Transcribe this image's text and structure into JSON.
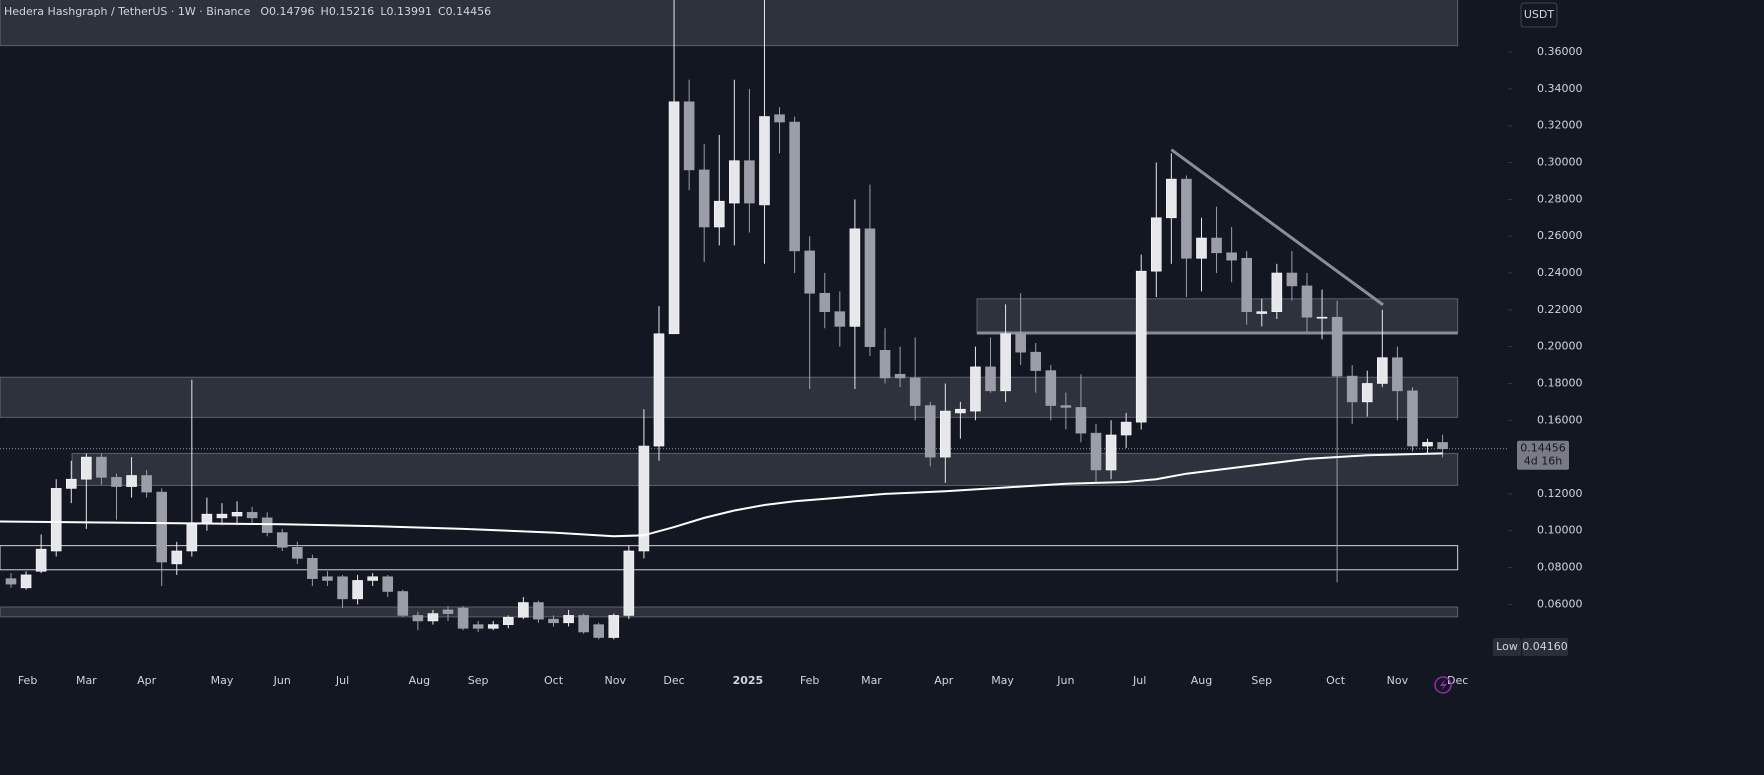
{
  "chart_data": {
    "type": "candlestick",
    "title": "Hedera Hashgraph / TetherUS · 1W · Binance",
    "ohlc_prefix": [
      "O",
      "H",
      "L",
      "C"
    ],
    "currency": "USDT",
    "countdown": "4d 16h",
    "low_label": "Low",
    "low_value": {
      "value": 0.0416,
      "label": "0.04160"
    },
    "up_color": "#e6e7ea",
    "down_color": "#9b9ea6",
    "open": [
      0.074,
      0.069,
      0.078,
      0.089,
      0.123,
      0.128,
      0.14,
      0.129,
      0.124,
      0.13,
      0.121,
      0.082,
      0.089,
      0.104,
      0.107,
      0.108,
      0.11,
      0.107,
      0.099,
      0.091,
      0.085,
      0.075,
      0.075,
      0.063,
      0.073,
      0.075,
      0.067,
      0.054,
      0.051,
      0.057,
      0.058,
      0.049,
      0.047,
      0.049,
      0.053,
      0.061,
      0.052,
      0.05,
      0.054,
      0.049,
      0.042,
      0.054,
      0.089,
      0.146,
      0.207,
      0.333,
      0.296,
      0.265,
      0.278,
      0.301,
      0.277,
      0.326,
      0.322,
      0.252,
      0.229,
      0.219,
      0.211,
      0.264,
      0.198,
      0.185,
      0.183,
      0.168,
      0.14,
      0.164,
      0.165,
      0.189,
      0.176,
      0.207,
      0.197,
      0.187,
      0.168,
      0.167,
      0.153,
      0.133,
      0.152,
      0.159,
      0.241,
      0.27,
      0.291,
      0.248,
      0.259,
      0.251,
      0.248,
      0.218,
      0.219,
      0.24,
      0.233,
      0.216,
      0.216,
      0.184,
      0.17,
      0.18,
      0.194,
      0.176,
      0.146,
      0.14796
    ],
    "high": [
      0.077,
      0.078,
      0.098,
      0.128,
      0.138,
      0.142,
      0.142,
      0.131,
      0.14,
      0.133,
      0.123,
      0.094,
      0.182,
      0.118,
      0.115,
      0.116,
      0.113,
      0.11,
      0.101,
      0.094,
      0.087,
      0.078,
      0.076,
      0.076,
      0.077,
      0.076,
      0.068,
      0.056,
      0.057,
      0.059,
      0.059,
      0.051,
      0.051,
      0.054,
      0.064,
      0.062,
      0.054,
      0.057,
      0.055,
      0.05,
      0.055,
      0.092,
      0.166,
      0.222,
      0.4,
      0.345,
      0.31,
      0.315,
      0.345,
      0.34,
      0.4,
      0.33,
      0.325,
      0.26,
      0.24,
      0.23,
      0.28,
      0.288,
      0.21,
      0.2,
      0.205,
      0.17,
      0.18,
      0.17,
      0.2,
      0.205,
      0.223,
      0.229,
      0.202,
      0.19,
      0.175,
      0.185,
      0.158,
      0.16,
      0.164,
      0.25,
      0.3,
      0.305,
      0.293,
      0.27,
      0.276,
      0.265,
      0.252,
      0.226,
      0.245,
      0.252,
      0.24,
      0.231,
      0.225,
      0.19,
      0.187,
      0.22,
      0.2,
      0.178,
      0.15,
      0.15216
    ],
    "low": [
      0.069,
      0.068,
      0.077,
      0.086,
      0.115,
      0.101,
      0.125,
      0.106,
      0.118,
      0.118,
      0.07,
      0.076,
      0.086,
      0.1,
      0.103,
      0.103,
      0.104,
      0.097,
      0.089,
      0.082,
      0.07,
      0.07,
      0.058,
      0.06,
      0.07,
      0.064,
      0.053,
      0.046,
      0.049,
      0.051,
      0.046,
      0.045,
      0.046,
      0.047,
      0.052,
      0.05,
      0.048,
      0.048,
      0.044,
      0.041,
      0.041,
      0.052,
      0.085,
      0.138,
      0.207,
      0.285,
      0.246,
      0.255,
      0.255,
      0.262,
      0.245,
      0.305,
      0.24,
      0.177,
      0.21,
      0.2,
      0.177,
      0.195,
      0.18,
      0.178,
      0.16,
      0.135,
      0.126,
      0.15,
      0.16,
      0.175,
      0.17,
      0.19,
      0.175,
      0.16,
      0.155,
      0.148,
      0.126,
      0.128,
      0.145,
      0.155,
      0.227,
      0.245,
      0.227,
      0.23,
      0.24,
      0.235,
      0.212,
      0.211,
      0.215,
      0.225,
      0.208,
      0.204,
      0.072,
      0.158,
      0.162,
      0.178,
      0.16,
      0.143,
      0.142,
      0.13991
    ],
    "close": [
      0.071,
      0.076,
      0.09,
      0.123,
      0.128,
      0.14,
      0.129,
      0.124,
      0.13,
      0.121,
      0.083,
      0.089,
      0.104,
      0.109,
      0.109,
      0.11,
      0.107,
      0.099,
      0.091,
      0.085,
      0.074,
      0.073,
      0.063,
      0.073,
      0.075,
      0.067,
      0.054,
      0.051,
      0.055,
      0.055,
      0.047,
      0.047,
      0.049,
      0.053,
      0.061,
      0.052,
      0.05,
      0.054,
      0.045,
      0.042,
      0.054,
      0.089,
      0.146,
      0.207,
      0.333,
      0.296,
      0.265,
      0.279,
      0.301,
      0.278,
      0.325,
      0.322,
      0.252,
      0.229,
      0.219,
      0.211,
      0.264,
      0.2,
      0.183,
      0.183,
      0.168,
      0.14,
      0.165,
      0.166,
      0.189,
      0.176,
      0.207,
      0.197,
      0.187,
      0.168,
      0.167,
      0.153,
      0.133,
      0.152,
      0.159,
      0.241,
      0.27,
      0.291,
      0.248,
      0.259,
      0.251,
      0.247,
      0.219,
      0.219,
      0.24,
      0.233,
      0.216,
      0.216,
      0.184,
      0.17,
      0.18,
      0.194,
      0.176,
      0.146,
      0.148,
      0.14456
    ],
    "line": {
      "color": "#ffffff",
      "x": [
        -0.73,
        6,
        12,
        18,
        24,
        30,
        36,
        40,
        42,
        44,
        46,
        48,
        50,
        52,
        55,
        58,
        62,
        66,
        70,
        74,
        76,
        78,
        82,
        86,
        90,
        95
      ],
      "values": [
        0.105,
        0.1045,
        0.104,
        0.1035,
        0.1025,
        0.101,
        0.099,
        0.097,
        0.0975,
        0.102,
        0.107,
        0.111,
        0.114,
        0.116,
        0.118,
        0.12,
        0.1215,
        0.1235,
        0.1255,
        0.1265,
        0.128,
        0.131,
        0.135,
        0.139,
        0.141,
        0.142
      ]
    },
    "zones": [
      {
        "x": [
          -0.73,
          96
        ],
        "y": [
          0.3635,
          0.4
        ],
        "style": "fill"
      },
      {
        "x": [
          -0.73,
          96
        ],
        "y": [
          0.1616,
          0.1834
        ],
        "style": "fill"
      },
      {
        "x": [
          4.05,
          96
        ],
        "y": [
          0.1246,
          0.142
        ],
        "style": "fill"
      },
      {
        "x": [
          -0.73,
          96
        ],
        "y": [
          0.0788,
          0.0919
        ],
        "style": "outline"
      },
      {
        "x": [
          -0.73,
          96
        ],
        "y": [
          0.0532,
          0.0586
        ],
        "style": "fill"
      },
      {
        "x": [
          64.1,
          96
        ],
        "y": [
          0.2074,
          0.226
        ],
        "style": "fill"
      }
    ],
    "levels": [
      {
        "x": [
          64.1,
          96
        ],
        "y": 0.2074
      }
    ],
    "trendline": {
      "x": [
        77,
        91.05
      ],
      "y": [
        0.307,
        0.2227
      ]
    },
    "xlim": [
      -0.73,
      99.34
    ],
    "ylim": [
      0.0287,
      0.3883
    ],
    "yticks": [
      {
        "value": 0.36,
        "label": "0.36000"
      },
      {
        "value": 0.34,
        "label": "0.34000"
      },
      {
        "value": 0.32,
        "label": "0.32000"
      },
      {
        "value": 0.3,
        "label": "0.30000"
      },
      {
        "value": 0.28,
        "label": "0.28000"
      },
      {
        "value": 0.26,
        "label": "0.26000"
      },
      {
        "value": 0.24,
        "label": "0.24000"
      },
      {
        "value": 0.22,
        "label": "0.22000"
      },
      {
        "value": 0.2,
        "label": "0.20000"
      },
      {
        "value": 0.18,
        "label": "0.18000"
      },
      {
        "value": 0.16,
        "label": "0.16000"
      },
      {
        "value": 0.12,
        "label": "0.12000"
      },
      {
        "value": 0.1,
        "label": "0.10000"
      },
      {
        "value": 0.08,
        "label": "0.08000"
      },
      {
        "value": 0.06,
        "label": "0.06000"
      }
    ],
    "xticks": [
      {
        "value": 1.1,
        "label": "Feb"
      },
      {
        "value": 5,
        "label": "Mar"
      },
      {
        "value": 9,
        "label": "Apr"
      },
      {
        "value": 14,
        "label": "May"
      },
      {
        "value": 18,
        "label": "Jun"
      },
      {
        "value": 22,
        "label": "Jul"
      },
      {
        "value": 27.1,
        "label": "Aug"
      },
      {
        "value": 31,
        "label": "Sep"
      },
      {
        "value": 36,
        "label": "Oct"
      },
      {
        "value": 40.1,
        "label": "Nov"
      },
      {
        "value": 44,
        "label": "Dec"
      },
      {
        "value": 48.9,
        "label": "2025"
      },
      {
        "value": 53,
        "label": "Feb"
      },
      {
        "value": 57.1,
        "label": "Mar"
      },
      {
        "value": 61.9,
        "label": "Apr"
      },
      {
        "value": 65.8,
        "label": "May"
      },
      {
        "value": 70,
        "label": "Jun"
      },
      {
        "value": 74.9,
        "label": "Jul"
      },
      {
        "value": 79,
        "label": "Aug"
      },
      {
        "value": 83,
        "label": "Sep"
      },
      {
        "value": 87.9,
        "label": "Oct"
      },
      {
        "value": 92,
        "label": "Nov"
      },
      {
        "value": 96,
        "label": "Dec"
      }
    ]
  }
}
